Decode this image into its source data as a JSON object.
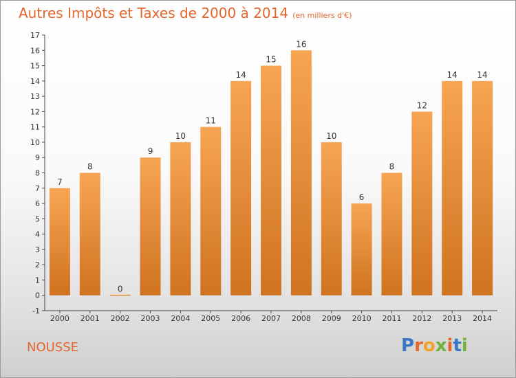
{
  "title": "Autres Impôts et Taxes de 2000 à 2014",
  "unit": "(en milliers d'€)",
  "commune": "NOUSSE",
  "logo": {
    "text": "Proxiti",
    "colors": [
      "#3a76c3",
      "#e4662c",
      "#f2a22a",
      "#6fb33c",
      "#e4662c",
      "#3a76c3",
      "#6fb33c"
    ]
  },
  "chart_data": {
    "type": "bar",
    "title": "Autres Impôts et Taxes de 2000 à 2014",
    "categories": [
      "2000",
      "2001",
      "2002",
      "2003",
      "2004",
      "2005",
      "2006",
      "2007",
      "2008",
      "2009",
      "2010",
      "2011",
      "2012",
      "2013",
      "2014"
    ],
    "values": [
      7,
      8,
      0,
      9,
      10,
      11,
      14,
      15,
      16,
      10,
      6,
      8,
      12,
      14,
      14
    ],
    "yticks": [
      "-1",
      "0",
      "1",
      "2",
      "3",
      "4",
      "5",
      "6",
      "7",
      "8",
      "9",
      "10",
      "11",
      "12",
      "13",
      "14",
      "15",
      "16",
      "17"
    ],
    "ylim": [
      -1,
      17
    ],
    "grid": false,
    "colors": {
      "bar_top": "#f7a553",
      "bar_bottom": "#cf7320"
    }
  }
}
